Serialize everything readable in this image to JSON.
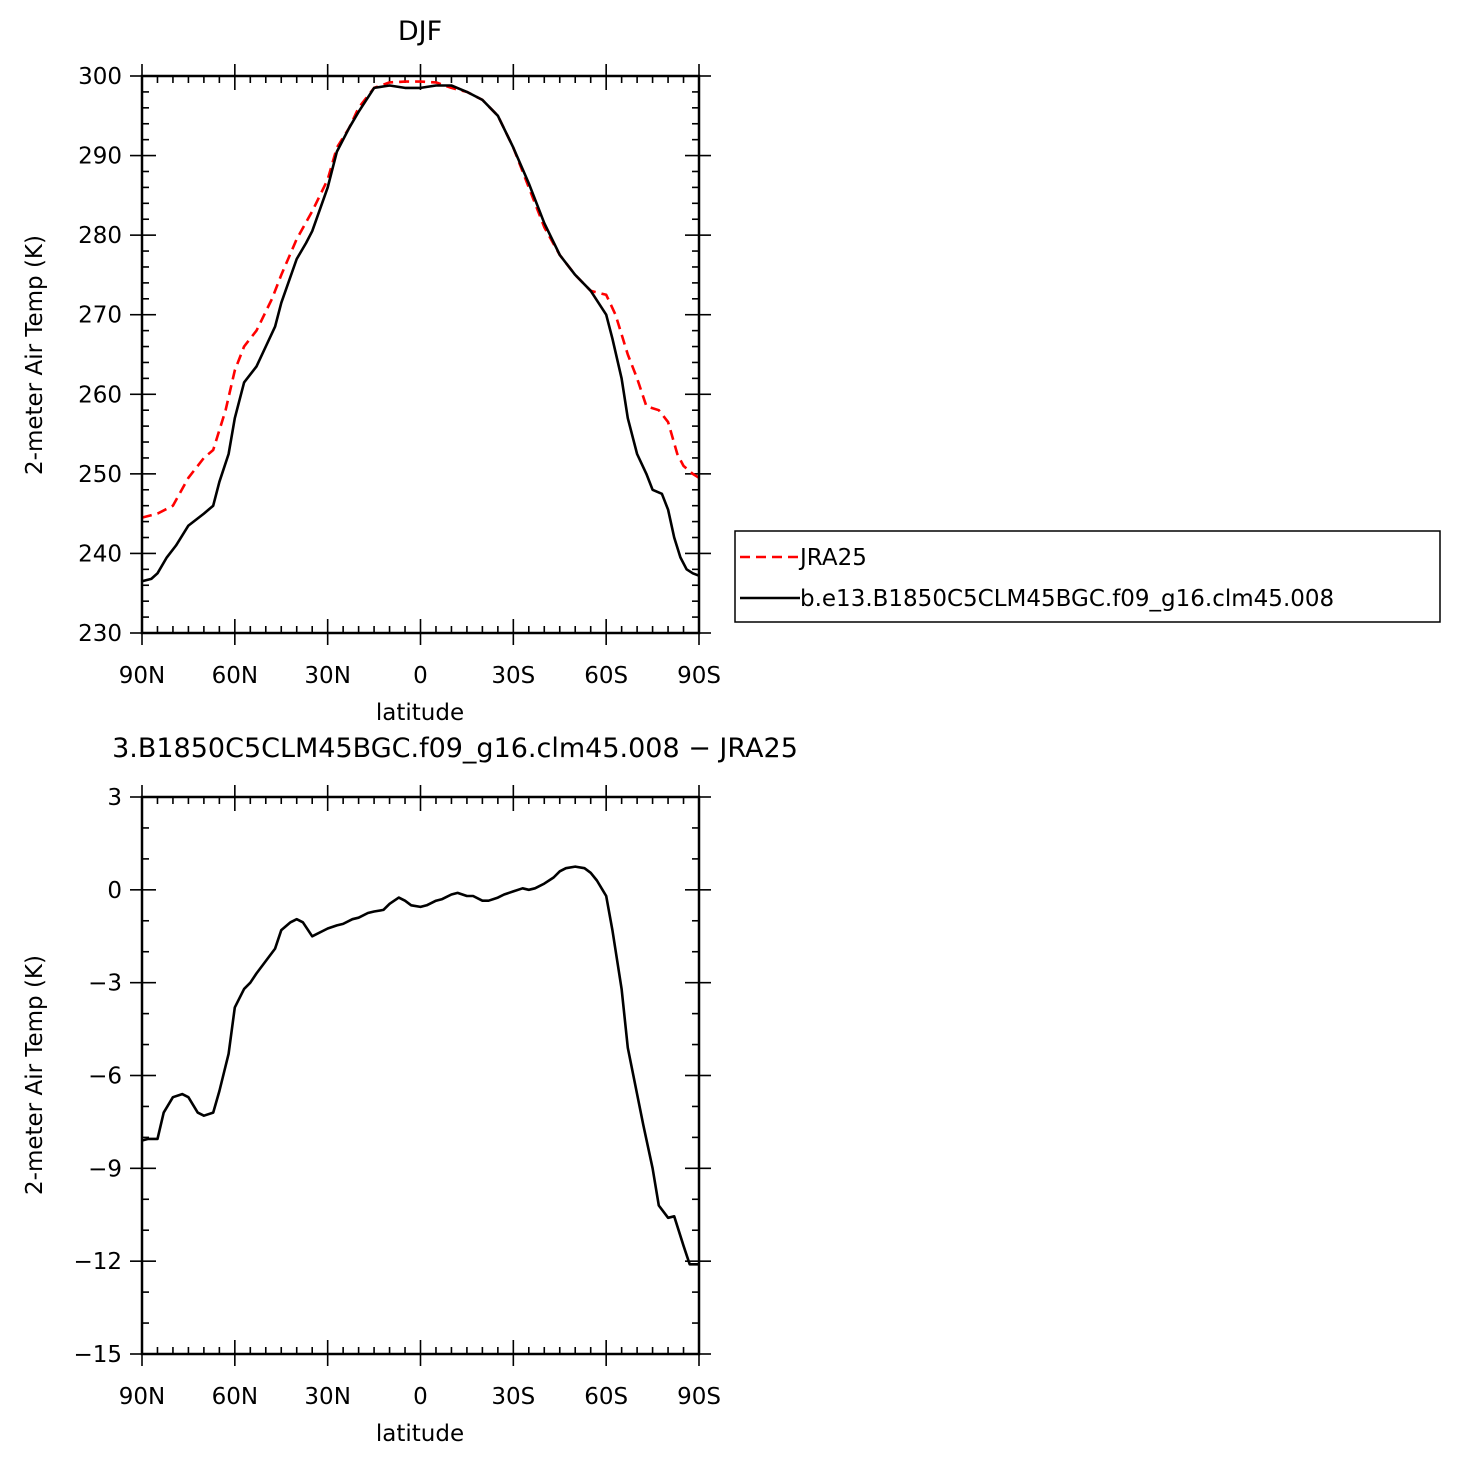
{
  "chart_data": [
    {
      "type": "line",
      "title": "DJF",
      "xlabel": "latitude",
      "ylabel": "2-meter Air Temp (K)",
      "xlim": [
        90,
        -90
      ],
      "ylim": [
        230,
        300
      ],
      "x_tick_values": [
        90,
        60,
        30,
        0,
        -30,
        -60,
        -90
      ],
      "x_tick_labels": [
        "90N",
        "60N",
        "30N",
        "0",
        "30S",
        "60S",
        "90S"
      ],
      "y_ticks": [
        230,
        240,
        250,
        260,
        270,
        280,
        290,
        300
      ],
      "legend": "right",
      "series": [
        {
          "name": "JRA25",
          "color": "#ff0000",
          "dash": "dashed",
          "x": [
            90,
            85,
            80,
            75,
            70,
            67,
            63,
            60,
            57,
            53,
            48,
            45,
            40,
            35,
            30,
            27,
            23,
            20,
            15,
            10,
            5,
            0,
            -5,
            -10,
            -15,
            -20,
            -25,
            -30,
            -35,
            -40,
            -45,
            -50,
            -55,
            -60,
            -63,
            -67,
            -70,
            -73,
            -77,
            -80,
            -83,
            -85,
            -88,
            -90
          ],
          "y": [
            244.5,
            245,
            246,
            249.5,
            252,
            253,
            258,
            263,
            266,
            268,
            272,
            275,
            279.5,
            283,
            287,
            291,
            293.5,
            296,
            298.5,
            299.2,
            299.3,
            299.3,
            299.2,
            298.5,
            298,
            297,
            295,
            291,
            286,
            281,
            277.5,
            275,
            273,
            272.5,
            270,
            265,
            262,
            258.5,
            258,
            256.5,
            252.5,
            251,
            250,
            249.5
          ]
        },
        {
          "name": "b.e13.B1850C5CLM45BGC.f09_g16.clm45.008",
          "color": "#000000",
          "dash": "solid",
          "x": [
            90,
            87,
            85,
            82,
            79,
            75,
            70,
            67,
            65,
            62,
            60,
            57,
            53,
            50,
            47,
            45,
            40,
            37,
            35,
            30,
            27,
            23,
            20,
            15,
            10,
            5,
            0,
            -5,
            -10,
            -15,
            -20,
            -25,
            -30,
            -35,
            -40,
            -45,
            -50,
            -55,
            -60,
            -62,
            -65,
            -67,
            -70,
            -73,
            -75,
            -78,
            -80,
            -82,
            -84,
            -86,
            -88,
            -90
          ],
          "y": [
            236.5,
            236.8,
            237.5,
            239.5,
            241,
            243.5,
            245,
            246,
            249,
            252.5,
            257,
            261.5,
            263.5,
            266,
            268.5,
            271.5,
            277,
            279,
            280.5,
            286,
            290.5,
            293.5,
            295.5,
            298.5,
            298.8,
            298.5,
            298.5,
            298.8,
            298.8,
            298,
            297,
            295,
            291,
            286.5,
            281.5,
            277.5,
            275,
            273,
            270,
            267,
            262,
            257,
            252.5,
            250,
            248,
            247.5,
            245.5,
            242,
            239.5,
            238,
            237.5,
            237.2
          ]
        }
      ]
    },
    {
      "type": "line",
      "title": "3.B1850C5CLM45BGC.f09_g16.clm45.008 − JRA25",
      "xlabel": "latitude",
      "ylabel": "2-meter Air Temp (K)",
      "xlim": [
        90,
        -90
      ],
      "ylim": [
        -15,
        3
      ],
      "x_tick_values": [
        90,
        60,
        30,
        0,
        -30,
        -60,
        -90
      ],
      "x_tick_labels": [
        "90N",
        "60N",
        "30N",
        "0",
        "30S",
        "60S",
        "90S"
      ],
      "y_tick_values": [
        3,
        0,
        -3,
        -6,
        -9,
        -12,
        -15
      ],
      "y_tick_labels": [
        "3",
        "0",
        "−3",
        "−6",
        "−9",
        "−12",
        "−15"
      ],
      "series": [
        {
          "color": "#000000",
          "x": [
            90,
            88,
            85,
            83,
            80,
            77,
            75,
            72,
            70,
            67,
            65,
            62,
            60,
            57,
            55,
            53,
            50,
            47,
            45,
            42,
            40,
            38,
            35,
            32,
            30,
            27,
            25,
            22,
            20,
            17,
            15,
            12,
            10,
            7,
            5,
            3,
            0,
            -2,
            -5,
            -7,
            -10,
            -12,
            -15,
            -17,
            -20,
            -22,
            -25,
            -27,
            -30,
            -33,
            -35,
            -37,
            -40,
            -43,
            -45,
            -47,
            -50,
            -53,
            -55,
            -57,
            -60,
            -62,
            -65,
            -67,
            -70,
            -72,
            -75,
            -77,
            -80,
            -82,
            -85,
            -87,
            -90
          ],
          "y": [
            -8.1,
            -8.05,
            -8.05,
            -7.2,
            -6.7,
            -6.6,
            -6.7,
            -7.2,
            -7.3,
            -7.2,
            -6.5,
            -5.3,
            -3.8,
            -3.2,
            -3.0,
            -2.7,
            -2.3,
            -1.9,
            -1.3,
            -1.05,
            -0.95,
            -1.05,
            -1.5,
            -1.35,
            -1.25,
            -1.15,
            -1.1,
            -0.95,
            -0.9,
            -0.75,
            -0.7,
            -0.65,
            -0.45,
            -0.25,
            -0.35,
            -0.5,
            -0.55,
            -0.5,
            -0.35,
            -0.3,
            -0.15,
            -0.1,
            -0.2,
            -0.2,
            -0.35,
            -0.35,
            -0.25,
            -0.15,
            -0.05,
            0.05,
            0.0,
            0.05,
            0.2,
            0.4,
            0.6,
            0.7,
            0.75,
            0.7,
            0.55,
            0.3,
            -0.2,
            -1.3,
            -3.2,
            -5.1,
            -6.6,
            -7.6,
            -9.0,
            -10.2,
            -10.6,
            -10.55,
            -11.5,
            -12.1,
            -12.1
          ]
        }
      ]
    }
  ]
}
